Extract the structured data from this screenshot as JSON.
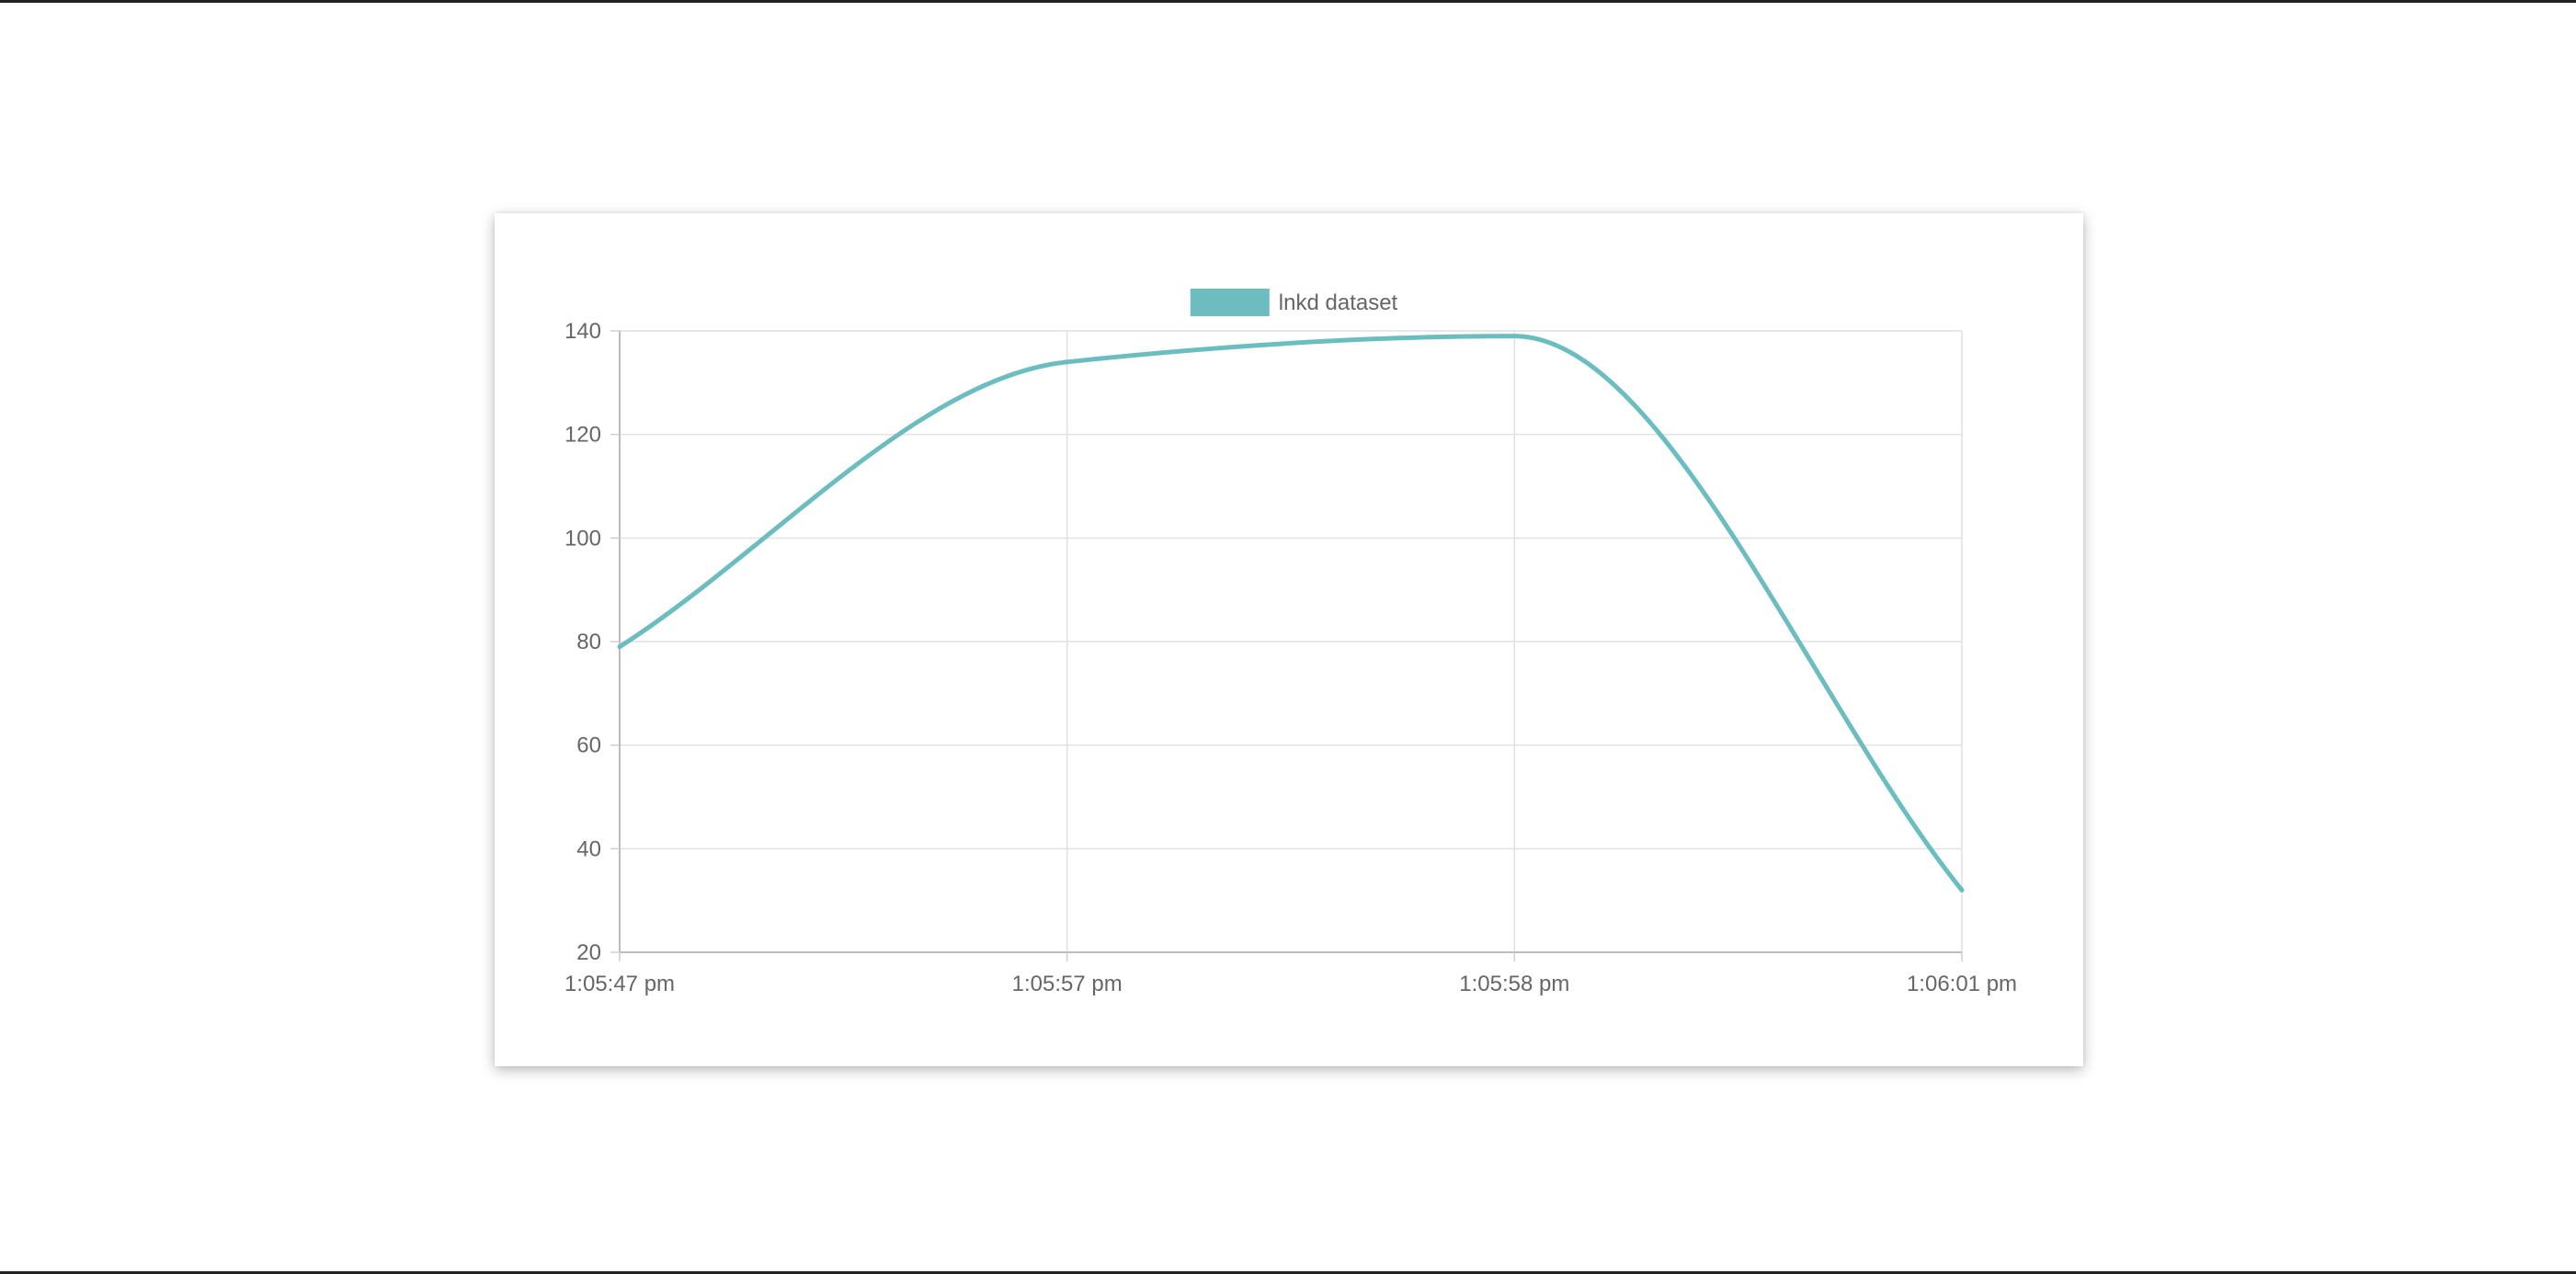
{
  "chart_data": {
    "type": "line",
    "x": [
      "1:05:47 pm",
      "1:05:57 pm",
      "1:05:58 pm",
      "1:06:01 pm"
    ],
    "series": [
      {
        "name": "lnkd dataset",
        "values": [
          79,
          134,
          139,
          32
        ],
        "color": "#6cbdbf"
      }
    ],
    "ylim": [
      20,
      140
    ],
    "yticks": [
      20,
      40,
      60,
      80,
      100,
      120,
      140
    ],
    "grid": true,
    "legend": "top-center",
    "smooth": true
  }
}
